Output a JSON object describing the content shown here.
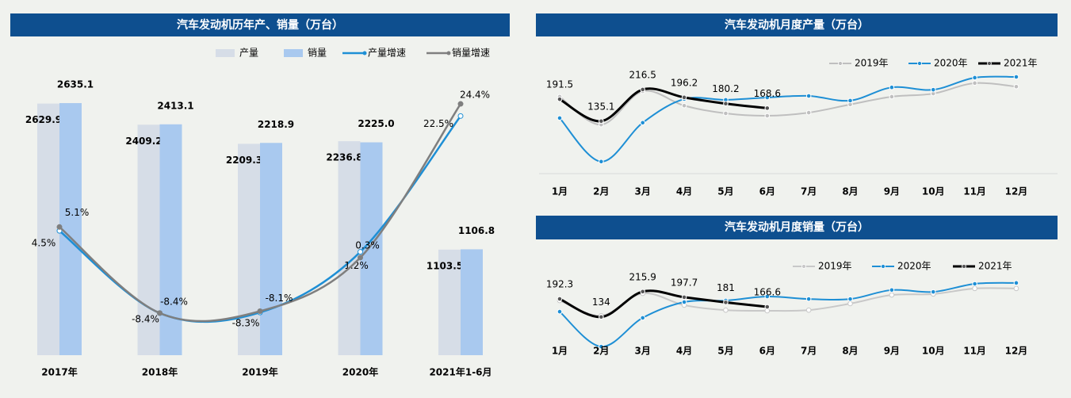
{
  "chart_data": [
    {
      "type": "combo",
      "title": "汽车发动机历年产、销量（万台）",
      "categories": [
        "2017年",
        "2018年",
        "2019年",
        "2020年",
        "2021年1-6月"
      ],
      "ylim": [
        0,
        3000
      ],
      "y2lim": [
        -15,
        30
      ],
      "series": [
        {
          "name": "产量",
          "type": "bar",
          "color": "#d6dde7",
          "values": [
            2629.9,
            2409.2,
            2209.3,
            2236.8,
            1103.5
          ],
          "value_labels": [
            "2629.9",
            "2409.2",
            "2209.3",
            "2236.8",
            "1103.5"
          ]
        },
        {
          "name": "销量",
          "type": "bar",
          "color": "#a9c9ef",
          "values": [
            2635.1,
            2413.1,
            2218.9,
            2225.0,
            1106.8
          ],
          "value_labels": [
            "2635.1",
            "2413.1",
            "2218.9",
            "2225.0",
            "1106.8"
          ]
        },
        {
          "name": "产量增速",
          "type": "line",
          "axis": "y2",
          "color": "#1e8fd5",
          "values": [
            4.5,
            -8.4,
            -8.3,
            1.2,
            22.5
          ],
          "value_labels": [
            "4.5%",
            "-8.4%",
            "-8.3%",
            "1.2%",
            "22.5%"
          ]
        },
        {
          "name": "销量增速",
          "type": "line",
          "axis": "y2",
          "color": "#7f7f7f",
          "values": [
            5.1,
            -8.4,
            -8.1,
            0.3,
            24.4
          ],
          "value_labels": [
            "5.1%",
            "-8.4%",
            "-8.1%",
            "0.3%",
            "24.4%"
          ]
        }
      ]
    },
    {
      "type": "line",
      "title": "汽车发动机月度产量（万台）",
      "categories": [
        "1月",
        "2月",
        "3月",
        "4月",
        "5月",
        "6月",
        "7月",
        "8月",
        "9月",
        "10月",
        "11月",
        "12月"
      ],
      "ylim": [
        0,
        250
      ],
      "series": [
        {
          "name": "2019年",
          "color": "#bfbfbf",
          "values": [
            198,
            126,
            212,
            175,
            155,
            149,
            157,
            178,
            198,
            206,
            233,
            224
          ]
        },
        {
          "name": "2020年",
          "color": "#1e8fd5",
          "values": [
            143,
            31,
            131,
            192,
            190,
            196,
            200,
            188,
            222,
            216,
            247,
            249
          ]
        },
        {
          "name": "2021年",
          "color": "#000000",
          "values": [
            191.5,
            135.1,
            216.5,
            196.2,
            180.2,
            168.6,
            null,
            null,
            null,
            null,
            null,
            null
          ]
        }
      ]
    },
    {
      "type": "line",
      "title": "汽车发动机月度销量（万台）",
      "categories": [
        "1月",
        "2月",
        "3月",
        "4月",
        "5月",
        "6月",
        "7月",
        "8月",
        "9月",
        "10月",
        "11月",
        "12月"
      ],
      "ylim": [
        0,
        300
      ],
      "series": [
        {
          "name": "2019年",
          "color": "#c8c8c8",
          "values": [
            187,
            138,
            210,
            172,
            156,
            154,
            156,
            177,
            205,
            208,
            226,
            226
          ]
        },
        {
          "name": "2020年",
          "color": "#1e8fd5",
          "values": [
            151,
            38,
            131,
            182,
            187,
            200,
            192,
            192,
            221,
            215,
            241,
            244
          ]
        },
        {
          "name": "2021年",
          "color": "#000000",
          "values": [
            192.3,
            134.0,
            215.9,
            197.7,
            181.0,
            166.6,
            null,
            null,
            null,
            null,
            null,
            null
          ]
        }
      ]
    }
  ]
}
